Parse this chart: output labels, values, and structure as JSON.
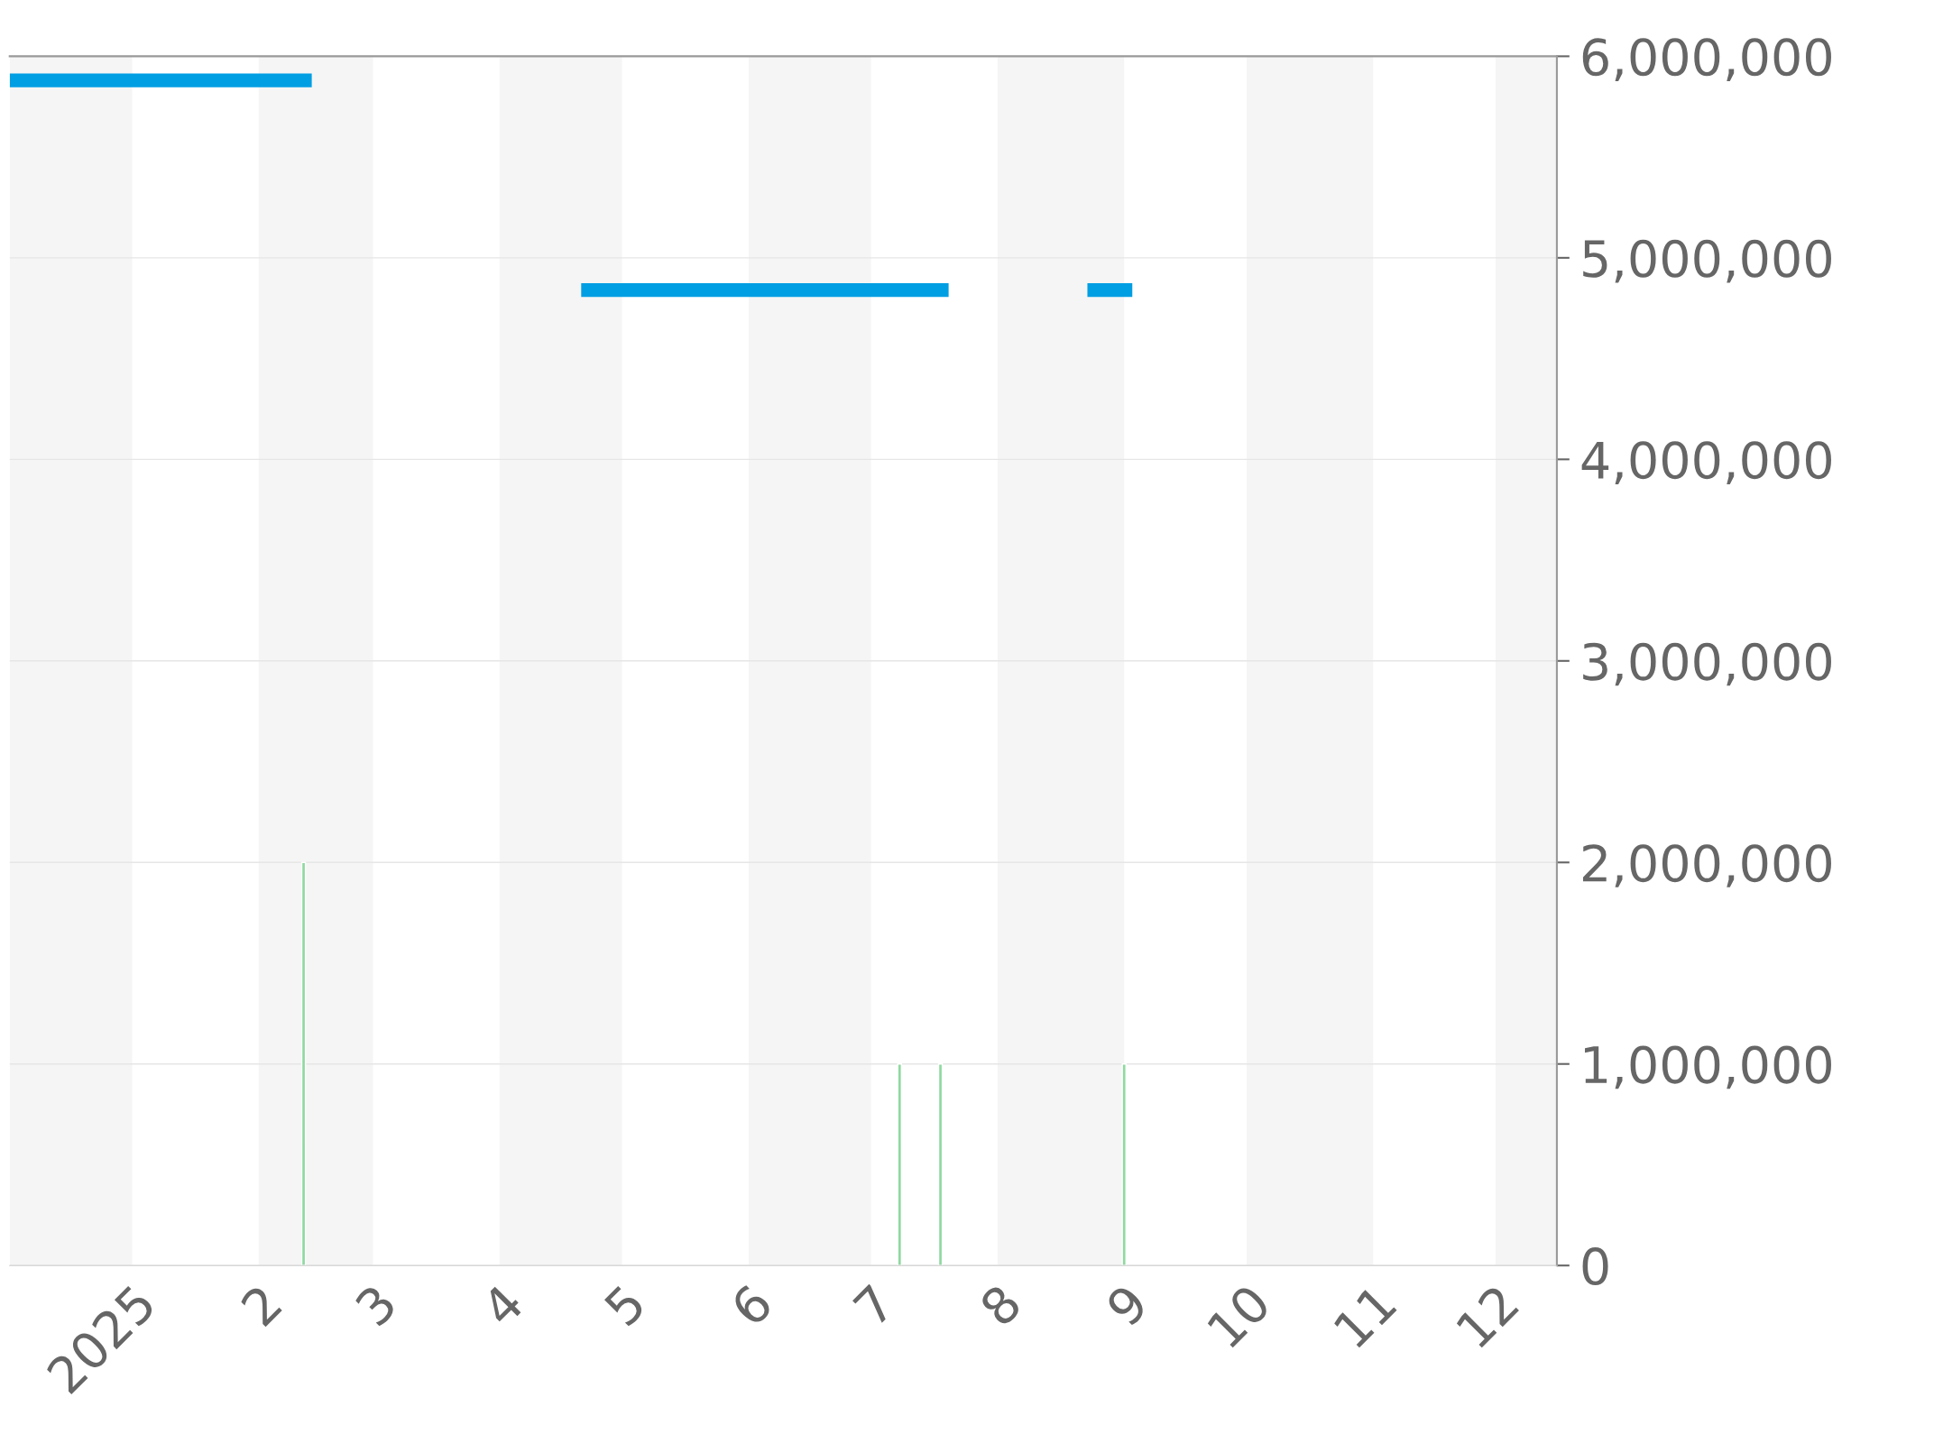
{
  "chart_data": {
    "type": "line",
    "xlim": [
      "2024-12-02",
      "2025-12-16"
    ],
    "ylim": [
      0,
      6000000
    ],
    "xticks": [
      {
        "value": "2025-01-01",
        "label": "2025"
      },
      {
        "value": "2025-02-01",
        "label": "2"
      },
      {
        "value": "2025-03-01",
        "label": "3"
      },
      {
        "value": "2025-04-01",
        "label": "4"
      },
      {
        "value": "2025-05-01",
        "label": "5"
      },
      {
        "value": "2025-06-01",
        "label": "6"
      },
      {
        "value": "2025-07-01",
        "label": "7"
      },
      {
        "value": "2025-08-01",
        "label": "8"
      },
      {
        "value": "2025-09-01",
        "label": "9"
      },
      {
        "value": "2025-10-01",
        "label": "10"
      },
      {
        "value": "2025-11-01",
        "label": "11"
      },
      {
        "value": "2025-12-01",
        "label": "12"
      }
    ],
    "yticks": [
      {
        "value": 0,
        "label": "0"
      },
      {
        "value": 1000000,
        "label": "1,000,000"
      },
      {
        "value": 2000000,
        "label": "2,000,000"
      },
      {
        "value": 3000000,
        "label": "3,000,000"
      },
      {
        "value": 4000000,
        "label": "4,000,000"
      },
      {
        "value": 5000000,
        "label": "5,000,000"
      },
      {
        "value": 6000000,
        "label": "6,000,000"
      }
    ],
    "grid": "y",
    "bands": [
      {
        "axis": "x",
        "from": "2024-12-02",
        "to": "2025-01-01",
        "color": "#f5f5f5"
      },
      {
        "axis": "x",
        "from": "2025-02-01",
        "to": "2025-03-01",
        "color": "#f5f5f5"
      },
      {
        "axis": "x",
        "from": "2025-04-01",
        "to": "2025-05-01",
        "color": "#f5f5f5"
      },
      {
        "axis": "x",
        "from": "2025-06-01",
        "to": "2025-07-01",
        "color": "#f5f5f5"
      },
      {
        "axis": "x",
        "from": "2025-08-01",
        "to": "2025-09-01",
        "color": "#f5f5f5"
      },
      {
        "axis": "x",
        "from": "2025-10-01",
        "to": "2025-11-01",
        "color": "#f5f5f5"
      },
      {
        "axis": "x",
        "from": "2025-12-01",
        "to": "2025-12-16",
        "color": "#f5f5f5"
      }
    ],
    "series": [
      {
        "color": "#009ee3",
        "x": [
          "2024-12-02",
          "2025-02-14",
          "2025-03-15",
          "2025-04-21",
          "2025-07-20",
          "2025-08-05",
          "2025-08-23",
          "2025-09-03"
        ],
        "values": [
          5880000,
          5880000,
          null,
          4840000,
          4840000,
          null,
          4840000,
          4840000
        ]
      },
      {
        "type": "bar",
        "color": "#8fd9a0",
        "x": [
          "2025-02-12",
          "2025-07-08",
          "2025-07-18",
          "2025-09-01"
        ],
        "values": [
          2000000,
          1000000,
          1000000,
          1000000
        ]
      }
    ]
  }
}
